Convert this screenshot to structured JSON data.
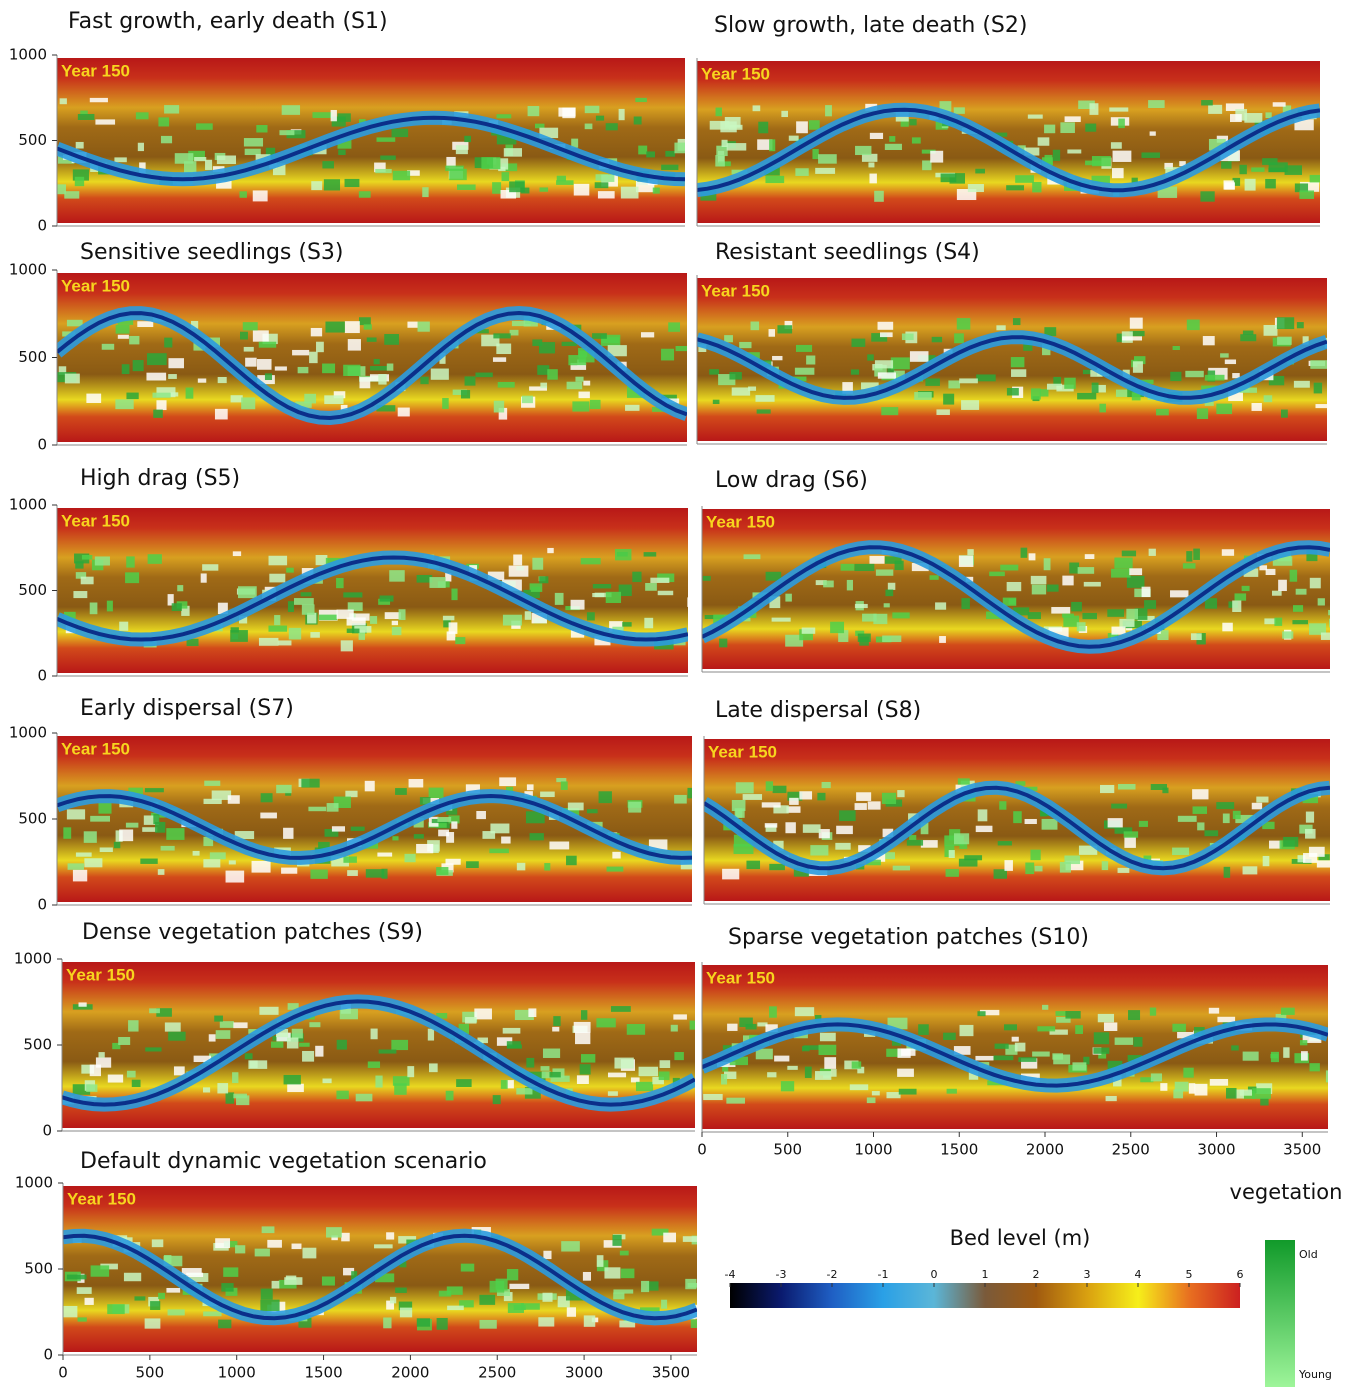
{
  "chart_data": [
    {
      "type": "map",
      "title": "Fast growth, early death (S1)",
      "annotation": "Year 150",
      "ylim": [
        0,
        1000
      ],
      "yticks": [
        0,
        500,
        1000
      ],
      "xlim": [
        0,
        3650
      ]
    },
    {
      "type": "map",
      "title": "Slow growth, late death (S2)",
      "annotation": "Year 150",
      "ylim": [
        0,
        1000
      ],
      "xlim": [
        0,
        3650
      ]
    },
    {
      "type": "map",
      "title": "Sensitive seedlings (S3)",
      "annotation": "Year 150",
      "ylim": [
        0,
        1000
      ],
      "yticks": [
        0,
        500,
        1000
      ],
      "xlim": [
        0,
        3650
      ]
    },
    {
      "type": "map",
      "title": "Resistant seedlings (S4)",
      "annotation": "Year 150",
      "ylim": [
        0,
        1000
      ],
      "xlim": [
        0,
        3650
      ]
    },
    {
      "type": "map",
      "title": "High drag (S5)",
      "annotation": "Year 150",
      "ylim": [
        0,
        1000
      ],
      "yticks": [
        0,
        500,
        1000
      ],
      "xlim": [
        0,
        3650
      ]
    },
    {
      "type": "map",
      "title": "Low drag (S6)",
      "annotation": "Year 150",
      "ylim": [
        0,
        1000
      ],
      "xlim": [
        0,
        3650
      ]
    },
    {
      "type": "map",
      "title": "Early dispersal (S7)",
      "annotation": "Year 150",
      "ylim": [
        0,
        1000
      ],
      "yticks": [
        0,
        500,
        1000
      ],
      "xlim": [
        0,
        3650
      ]
    },
    {
      "type": "map",
      "title": "Late dispersal (S8)",
      "annotation": "Year 150",
      "ylim": [
        0,
        1000
      ],
      "xlim": [
        0,
        3650
      ]
    },
    {
      "type": "map",
      "title": "Dense vegetation patches (S9)",
      "annotation": "Year 150",
      "ylim": [
        0,
        1000
      ],
      "yticks": [
        0,
        500,
        1000
      ],
      "xlim": [
        0,
        3650
      ]
    },
    {
      "type": "map",
      "title": "Sparse vegetation patches (S10)",
      "annotation": "Year 150",
      "ylim": [
        0,
        1000
      ],
      "xlim": [
        0,
        3650
      ],
      "xticks": [
        0,
        500,
        1000,
        1500,
        2000,
        2500,
        3000,
        3500
      ]
    },
    {
      "type": "map",
      "title": "Default dynamic vegetation scenario",
      "annotation": "Year 150",
      "ylim": [
        0,
        1000
      ],
      "yticks": [
        0,
        500,
        1000
      ],
      "xlim": [
        0,
        3650
      ],
      "xticks": [
        0,
        500,
        1000,
        1500,
        2000,
        2500,
        3000,
        3500
      ]
    },
    {
      "type": "colorbar",
      "title": "Bed level (m)",
      "xlim": [
        -4,
        6
      ],
      "xticks": [
        -4,
        -3,
        -2,
        -1,
        0,
        1,
        2,
        3,
        4,
        5,
        6
      ],
      "colors": [
        "#000000",
        "#0a1a6e",
        "#1f5fc4",
        "#2aa0e6",
        "#5bb6d8",
        "#7a5a3a",
        "#a05a10",
        "#d9a010",
        "#f6ef1a",
        "#e87020",
        "#cc2020"
      ]
    },
    {
      "type": "legend",
      "title": "vegetation",
      "labels": [
        "Old",
        "Young"
      ],
      "colors": [
        "#119a2a",
        "#9ef59a"
      ]
    }
  ]
}
